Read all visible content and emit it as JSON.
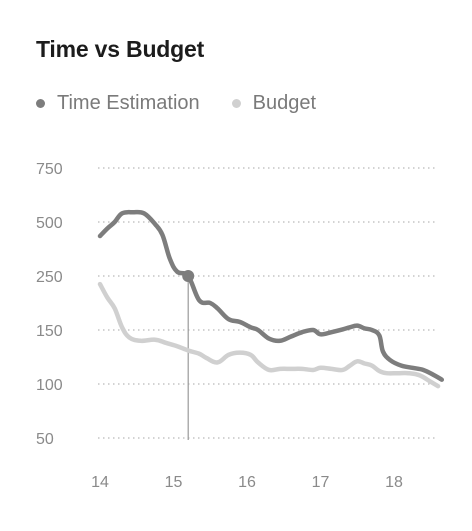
{
  "chart_data": {
    "type": "line",
    "title": "Time vs Budget",
    "xlabel": "",
    "ylabel": "",
    "x_ticks": [
      "14",
      "15",
      "16",
      "17",
      "18"
    ],
    "y_ticks": [
      "750",
      "500",
      "250",
      "150",
      "100",
      "50"
    ],
    "grid": "horizontal dotted",
    "legend_position": "top-left",
    "highlight": {
      "series": "Time Estimation",
      "x": 15.2,
      "y": 250
    },
    "series": [
      {
        "name": "Time Estimation",
        "color": "#7d7d7d",
        "points": [
          [
            14.0,
            435
          ],
          [
            14.1,
            470
          ],
          [
            14.2,
            500
          ],
          [
            14.3,
            540
          ],
          [
            14.45,
            545
          ],
          [
            14.6,
            540
          ],
          [
            14.75,
            490
          ],
          [
            14.85,
            440
          ],
          [
            14.95,
            330
          ],
          [
            15.05,
            270
          ],
          [
            15.2,
            250
          ],
          [
            15.35,
            205
          ],
          [
            15.5,
            200
          ],
          [
            15.6,
            190
          ],
          [
            15.75,
            170
          ],
          [
            15.9,
            165
          ],
          [
            16.05,
            155
          ],
          [
            16.15,
            150
          ],
          [
            16.3,
            142
          ],
          [
            16.45,
            140
          ],
          [
            16.6,
            144
          ],
          [
            16.75,
            148
          ],
          [
            16.9,
            150
          ],
          [
            17.0,
            146
          ],
          [
            17.15,
            148
          ],
          [
            17.3,
            151
          ],
          [
            17.4,
            155
          ],
          [
            17.5,
            158
          ],
          [
            17.6,
            153
          ],
          [
            17.7,
            150
          ],
          [
            17.8,
            145
          ],
          [
            17.85,
            130
          ],
          [
            17.95,
            122
          ],
          [
            18.1,
            117
          ],
          [
            18.25,
            115
          ],
          [
            18.4,
            113
          ],
          [
            18.55,
            108
          ],
          [
            18.65,
            104
          ]
        ]
      },
      {
        "name": "Budget",
        "color": "#d0d0d0",
        "points": [
          [
            14.0,
            235
          ],
          [
            14.1,
            210
          ],
          [
            14.2,
            190
          ],
          [
            14.3,
            155
          ],
          [
            14.4,
            143
          ],
          [
            14.55,
            140
          ],
          [
            14.75,
            141
          ],
          [
            14.9,
            138
          ],
          [
            15.05,
            135
          ],
          [
            15.2,
            131
          ],
          [
            15.35,
            128
          ],
          [
            15.45,
            124
          ],
          [
            15.6,
            120
          ],
          [
            15.75,
            127
          ],
          [
            15.9,
            129
          ],
          [
            16.05,
            127
          ],
          [
            16.15,
            120
          ],
          [
            16.3,
            113
          ],
          [
            16.45,
            114
          ],
          [
            16.6,
            114
          ],
          [
            16.75,
            114
          ],
          [
            16.9,
            113
          ],
          [
            17.0,
            115
          ],
          [
            17.15,
            114
          ],
          [
            17.3,
            113
          ],
          [
            17.4,
            117
          ],
          [
            17.5,
            121
          ],
          [
            17.6,
            119
          ],
          [
            17.7,
            117
          ],
          [
            17.8,
            112
          ],
          [
            17.9,
            110
          ],
          [
            18.05,
            110
          ],
          [
            18.2,
            110
          ],
          [
            18.35,
            108
          ],
          [
            18.5,
            102
          ],
          [
            18.6,
            98
          ]
        ]
      }
    ]
  }
}
